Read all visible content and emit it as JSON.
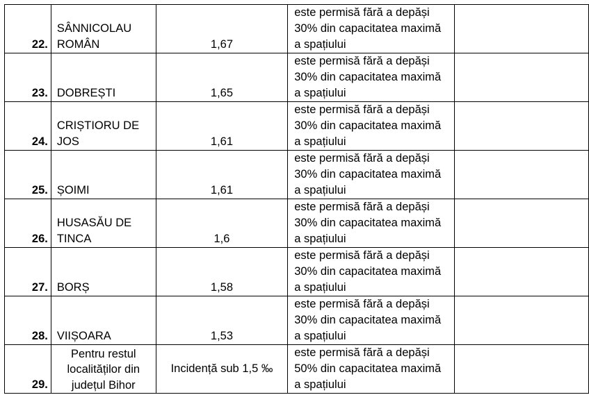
{
  "rows": [
    {
      "number": "22.",
      "name_lines": [
        "SÂNNICOLAU",
        "ROMÂN"
      ],
      "incidence": "1,67",
      "rule_lines": [
        "este permisă fără a depăși",
        "30% din capacitatea maximă",
        "a spațiului"
      ]
    },
    {
      "number": "23.",
      "name_lines": [
        "DOBREȘTI"
      ],
      "incidence": "1,65",
      "rule_lines": [
        "este permisă fără a depăși",
        "30% din capacitatea maximă",
        "a spațiului"
      ]
    },
    {
      "number": "24.",
      "name_lines": [
        "CRIȘTIORU DE",
        "JOS"
      ],
      "incidence": "1,61",
      "rule_lines": [
        "este permisă fără a depăși",
        "30% din capacitatea maximă",
        "a spațiului"
      ]
    },
    {
      "number": "25.",
      "name_lines": [
        "ȘOIMI"
      ],
      "incidence": "1,61",
      "rule_lines": [
        "este permisă fără a depăși",
        "30% din capacitatea maximă",
        "a spațiului"
      ]
    },
    {
      "number": "26.",
      "name_lines": [
        "HUSASĂU DE",
        "TINCA"
      ],
      "incidence": "1,6",
      "rule_lines": [
        "este permisă fără a depăși",
        "30% din capacitatea maximă",
        "a spațiului"
      ]
    },
    {
      "number": "27.",
      "name_lines": [
        "BORȘ"
      ],
      "incidence": "1,58",
      "rule_lines": [
        "este permisă fără a depăși",
        "30% din capacitatea maximă",
        "a spațiului"
      ]
    },
    {
      "number": "28.",
      "name_lines": [
        "VIIȘOARA"
      ],
      "incidence": "1,53",
      "rule_lines": [
        "este permisă fără a depăși",
        "30% din capacitatea maximă",
        "a spațiului"
      ]
    },
    {
      "number": "29.",
      "name_lines": [
        "Pentru restul",
        "localităților din",
        "județul Bihor"
      ],
      "incidence": "Incidență sub 1,5 ‰",
      "rule_lines": [
        "este permisă fără a depăși",
        "50% din capacitatea maximă",
        "a spațiului"
      ]
    }
  ]
}
